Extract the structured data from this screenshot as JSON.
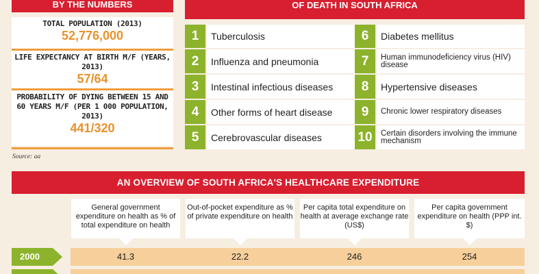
{
  "numbers": {
    "header": "BY THE NUMBERS",
    "stats": [
      {
        "label": "TOTAL POPULATION (2013)",
        "value": "52,776,000"
      },
      {
        "label": "LIFE EXPECTANCY AT BIRTH M/F (YEARS, 2013)",
        "value": "57/64"
      },
      {
        "label": "PROBABILITY OF DYING BETWEEN 15 AND 60 YEARS M/F (PER 1 000 POPULATION, 2013)",
        "value": "441/320"
      }
    ],
    "source": "Source: aa"
  },
  "causes": {
    "header": "OF DEATH IN SOUTH AFRICA",
    "items": [
      {
        "n": "1",
        "label": "Tuberculosis"
      },
      {
        "n": "2",
        "label": "Influenza and pneumonia"
      },
      {
        "n": "3",
        "label": "Intestinal infectious diseases"
      },
      {
        "n": "4",
        "label": "Other forms of heart disease"
      },
      {
        "n": "5",
        "label": "Cerebrovascular diseases"
      },
      {
        "n": "6",
        "label": "Diabetes mellitus"
      },
      {
        "n": "7",
        "label": "Human immunodeficiency virus (HIV) disease"
      },
      {
        "n": "8",
        "label": "Hypertensive diseases"
      },
      {
        "n": "9",
        "label": "Chronic lower respiratory diseases"
      },
      {
        "n": "10",
        "label": "Certain disorders involving the immune mechanism"
      }
    ]
  },
  "expenditure": {
    "header": "AN OVERVIEW OF SOUTH AFRICA'S HEALTHCARE EXPENDITURE",
    "columns": [
      "General government expenditure on health as % of total expenditure on health",
      "Out-of-pocket expenditure as % of private expenditure on health",
      "Per capita total expenditure on health at average exchange rate (US$)",
      "Per capita government expenditure on health (PPP int. $)"
    ],
    "rows": [
      {
        "year": "2000",
        "values": [
          "41.3",
          "22.2",
          "246",
          "254"
        ]
      }
    ]
  }
}
